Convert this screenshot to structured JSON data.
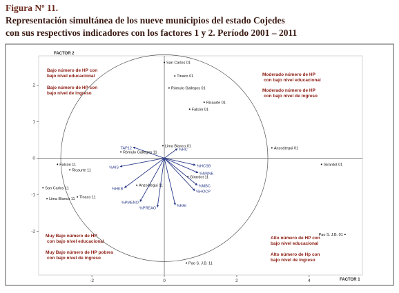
{
  "figure": {
    "label": "Figura Nº 11.",
    "caption": [
      "Representación simultánea de los nueve municipios del estado Cojedes",
      "con sus respectivos indicadores con los factores 1 y 2. Período 2001 – 2011"
    ]
  },
  "chart_data": {
    "type": "biplot",
    "x_label": "FACTOR 1",
    "y_label": "FACTOR 2",
    "xlim": [
      -3.47,
      5.47
    ],
    "ylim": [
      -3.2,
      2.8
    ],
    "xticks": [
      -2,
      0,
      2,
      4
    ],
    "yticks": [
      -2,
      -1,
      0,
      1,
      2
    ],
    "points": {
      "labels": [
        "San Carlos 01",
        "Tinaco 01",
        "Rómulo Gallegos 01",
        "Ricaurte 01",
        "Falcón 01",
        "Anzoátegui 01",
        "Girardot 01",
        "Lima Blanco 01",
        "Rómulo Gallegos 11",
        "Falcón 11",
        "Ricaurte 11",
        "San Carlos 11",
        "Lima Blanco 11",
        "Tinaco 11",
        "Anzoátegui 11",
        "Girardot 11",
        "Pao S. J.B. 01",
        "Pao S. J.B. 11"
      ],
      "x": [
        0,
        0.29,
        0.13,
        1.1,
        0.7,
        2.97,
        4.34,
        -0.04,
        -1.2,
        -2.95,
        -2.61,
        -3.35,
        -3.24,
        -2.4,
        -0.76,
        0.65,
        4.99,
        0.61
      ],
      "y": [
        2.62,
        2.25,
        1.92,
        1.53,
        1.34,
        0.28,
        -0.17,
        0.34,
        0.17,
        -0.17,
        -0.32,
        -0.81,
        -1.11,
        -1.06,
        -0.74,
        -0.51,
        -2.09,
        -2.87
      ],
      "color": "#111111"
    },
    "vectors": {
      "labels": [
        "TAP12",
        "%HC",
        "%AIS",
        "%HCSB",
        "%NNNE",
        "%MBC",
        "%HOCP",
        "%HKB",
        "%PMENO",
        "%PREAO",
        "%HAI"
      ],
      "x": [
        -0.86,
        0.36,
        -1.22,
        0.86,
        0.93,
        0.91,
        0.84,
        -1.1,
        -0.67,
        -0.19,
        0.3
      ],
      "y": [
        0.3,
        0.26,
        -0.23,
        -0.19,
        -0.4,
        -0.74,
        -0.89,
        -0.81,
        -1.19,
        -1.34,
        -1.28
      ],
      "color": "#2a3a8a"
    },
    "annotations": [
      [
        "Bajo número de HP con",
        "bajo nivel educacional"
      ],
      [
        "Bajo número de  HP con",
        "bajo nivel de ingreso"
      ],
      [
        "Moderado número de HP",
        "con bajo nivel educacional"
      ],
      [
        "Moderado número de HP",
        "con bajo nivel de ingreso"
      ],
      [
        "Muy Bajo número de HP",
        "con bajo nivel educacional"
      ],
      [
        "Muy Bajo número de HP pobres",
        "con bajo nivel de ingreso"
      ],
      [
        "Alto número de HP con",
        "bajo nivel educacional"
      ],
      [
        "Alto número de Hp con",
        "bajo nivel de ingreso"
      ]
    ]
  }
}
